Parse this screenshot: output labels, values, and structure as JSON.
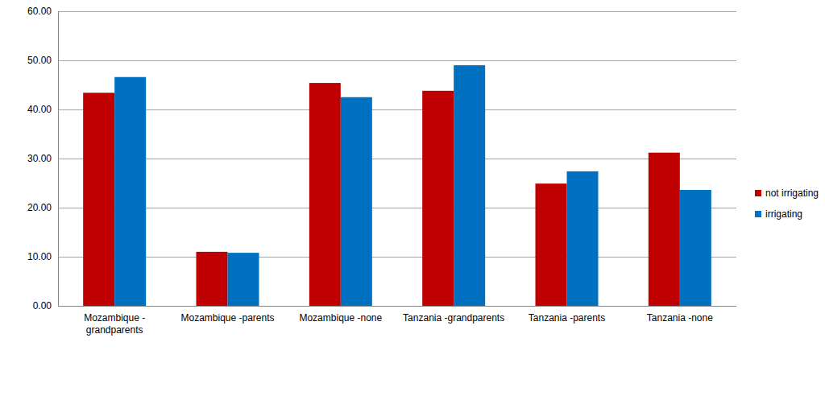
{
  "chart_data": {
    "type": "bar",
    "categories": [
      "Mozambique - grandparents",
      "Mozambique -parents",
      "Mozambique -none",
      "Tanzania -grandparents",
      "Tanzania -parents",
      "Tanzania -none"
    ],
    "series": [
      {
        "name": "not irrigating",
        "color": "#c00000",
        "values": [
          43.4,
          11.0,
          45.4,
          43.8,
          24.9,
          31.2
        ]
      },
      {
        "name": "irrigating",
        "color": "#0070c0",
        "values": [
          46.6,
          10.8,
          42.5,
          49.0,
          27.4,
          23.6
        ]
      }
    ],
    "ylim": [
      0,
      60
    ],
    "yticks": [
      {
        "value": 0,
        "label": "0.00"
      },
      {
        "value": 10,
        "label": "10.00"
      },
      {
        "value": 20,
        "label": "20.00"
      },
      {
        "value": 30,
        "label": "30.00"
      },
      {
        "value": 40,
        "label": "40.00"
      },
      {
        "value": 50,
        "label": "50.00"
      },
      {
        "value": 60,
        "label": "60.00"
      }
    ],
    "grid": true,
    "legend": "right"
  }
}
